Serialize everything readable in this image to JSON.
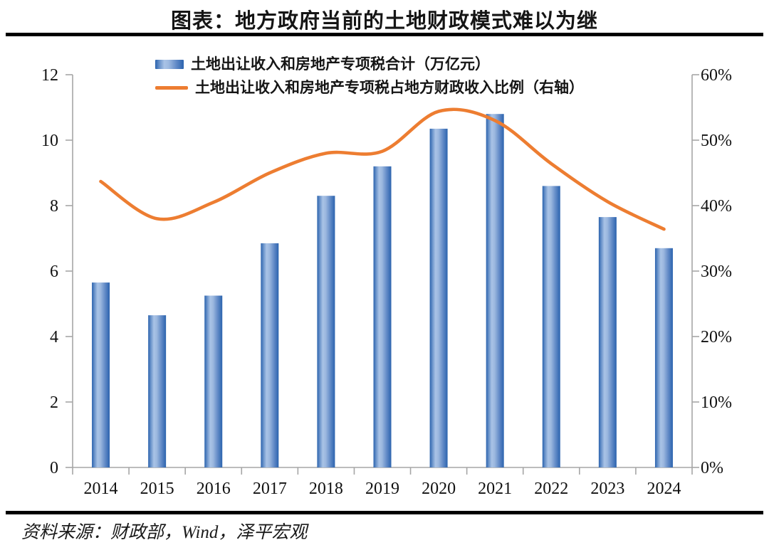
{
  "page": {
    "title": "图表：地方政府当前的土地财政模式难以为继",
    "source": "资料来源：财政部，Wind，泽平宏观"
  },
  "legend": [
    {
      "swatch": "bar-swatch",
      "label": "土地出让收入和房地产专项税合计（万亿元）"
    },
    {
      "swatch": "line-swatch",
      "label": "土地出让收入和房地产专项税占地方财政收入比例（右轴）"
    }
  ],
  "colors": {
    "bar_dark": "#2B63AE",
    "bar_light": "#A9C3E6",
    "line": "#ED7D31",
    "axis": "#A6A6A6",
    "text": "#111111",
    "divider": "#000000"
  },
  "chart_data": {
    "type": "bar",
    "subtype": "bar+line-combo",
    "categories": [
      "2014",
      "2015",
      "2016",
      "2017",
      "2018",
      "2019",
      "2020",
      "2021",
      "2022",
      "2023",
      "2024"
    ],
    "series": [
      {
        "name": "土地出让收入和房地产专项税合计（万亿元）",
        "type": "bar",
        "axis": "left",
        "values": [
          5.65,
          4.65,
          5.25,
          6.85,
          8.3,
          9.2,
          10.35,
          10.8,
          8.6,
          7.65,
          6.7
        ]
      },
      {
        "name": "土地出让收入和房地产专项税占地方财政收入比例（右轴）",
        "type": "line",
        "axis": "right",
        "values": [
          43.7,
          38.0,
          40.5,
          45.0,
          48.0,
          48.3,
          54.4,
          53.0,
          46.4,
          40.6,
          36.4
        ]
      }
    ],
    "left_axis": {
      "min": 0,
      "max": 12,
      "ticks": [
        "0",
        "2",
        "4",
        "6",
        "8",
        "10",
        "12"
      ],
      "tick_values": [
        0,
        2,
        4,
        6,
        8,
        10,
        12
      ]
    },
    "right_axis": {
      "min": 0,
      "max": 60,
      "ticks": [
        "0%",
        "10%",
        "20%",
        "30%",
        "40%",
        "50%",
        "60%"
      ],
      "tick_values": [
        0,
        10,
        20,
        30,
        40,
        50,
        60
      ]
    },
    "grid": false,
    "legend_position": "top",
    "smooth_line": true
  }
}
